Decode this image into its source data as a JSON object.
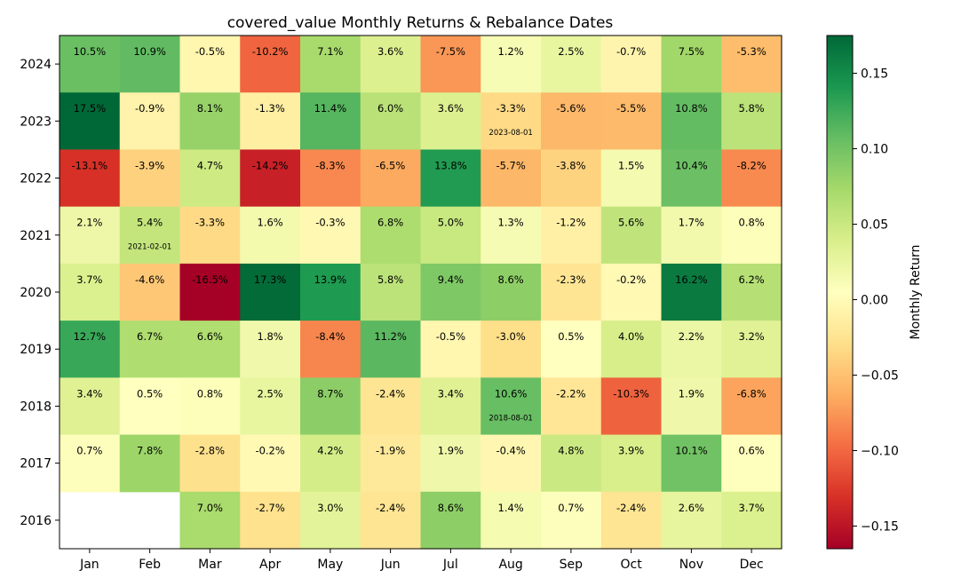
{
  "chart_data": {
    "type": "heatmap",
    "title": "covered_value Monthly Returns & Rebalance Dates",
    "xlabel": "",
    "ylabel": "",
    "months": [
      "Jan",
      "Feb",
      "Mar",
      "Apr",
      "May",
      "Jun",
      "Jul",
      "Aug",
      "Sep",
      "Oct",
      "Nov",
      "Dec"
    ],
    "years": [
      "2024",
      "2023",
      "2022",
      "2021",
      "2020",
      "2019",
      "2018",
      "2017",
      "2016"
    ],
    "values": [
      [
        0.105,
        0.109,
        -0.005,
        -0.102,
        0.071,
        0.036,
        -0.075,
        0.012,
        0.025,
        -0.007,
        0.075,
        -0.053
      ],
      [
        0.175,
        -0.009,
        0.081,
        -0.013,
        0.114,
        0.06,
        0.036,
        -0.033,
        -0.056,
        -0.055,
        0.108,
        0.058
      ],
      [
        -0.131,
        -0.039,
        0.047,
        -0.142,
        -0.083,
        -0.065,
        0.138,
        -0.057,
        -0.038,
        0.015,
        0.104,
        -0.082
      ],
      [
        0.021,
        0.054,
        -0.033,
        0.016,
        -0.003,
        0.068,
        0.05,
        0.013,
        -0.012,
        0.056,
        0.017,
        0.008
      ],
      [
        0.037,
        -0.046,
        -0.165,
        0.173,
        0.139,
        0.058,
        0.094,
        0.086,
        -0.023,
        -0.002,
        0.162,
        0.062
      ],
      [
        0.127,
        0.067,
        0.066,
        0.018,
        -0.084,
        0.112,
        -0.005,
        -0.03,
        0.005,
        0.04,
        0.022,
        0.032
      ],
      [
        0.034,
        0.005,
        0.008,
        0.025,
        0.087,
        -0.024,
        0.034,
        0.106,
        -0.022,
        -0.103,
        0.019,
        -0.068
      ],
      [
        0.007,
        0.078,
        -0.028,
        -0.002,
        0.042,
        -0.019,
        0.019,
        -0.004,
        0.048,
        0.039,
        0.101,
        0.006
      ],
      [
        null,
        null,
        0.07,
        -0.027,
        0.03,
        -0.024,
        0.086,
        0.014,
        0.007,
        -0.024,
        0.026,
        0.037
      ]
    ],
    "cell_labels": [
      [
        "10.5%",
        "10.9%",
        "-0.5%",
        "-10.2%",
        "7.1%",
        "3.6%",
        "-7.5%",
        "1.2%",
        "2.5%",
        "-0.7%",
        "7.5%",
        "-5.3%"
      ],
      [
        "17.5%",
        "-0.9%",
        "8.1%",
        "-1.3%",
        "11.4%",
        "6.0%",
        "3.6%",
        "-3.3%",
        "-5.6%",
        "-5.5%",
        "10.8%",
        "5.8%"
      ],
      [
        "-13.1%",
        "-3.9%",
        "4.7%",
        "-14.2%",
        "-8.3%",
        "-6.5%",
        "13.8%",
        "-5.7%",
        "-3.8%",
        "1.5%",
        "10.4%",
        "-8.2%"
      ],
      [
        "2.1%",
        "5.4%",
        "-3.3%",
        "1.6%",
        "-0.3%",
        "6.8%",
        "5.0%",
        "1.3%",
        "-1.2%",
        "5.6%",
        "1.7%",
        "0.8%"
      ],
      [
        "3.7%",
        "-4.6%",
        "-16.5%",
        "17.3%",
        "13.9%",
        "5.8%",
        "9.4%",
        "8.6%",
        "-2.3%",
        "-0.2%",
        "16.2%",
        "6.2%"
      ],
      [
        "12.7%",
        "6.7%",
        "6.6%",
        "1.8%",
        "-8.4%",
        "11.2%",
        "-0.5%",
        "-3.0%",
        "0.5%",
        "4.0%",
        "2.2%",
        "3.2%"
      ],
      [
        "3.4%",
        "0.5%",
        "0.8%",
        "2.5%",
        "8.7%",
        "-2.4%",
        "3.4%",
        "10.6%",
        "-2.2%",
        "-10.3%",
        "1.9%",
        "-6.8%"
      ],
      [
        "0.7%",
        "7.8%",
        "-2.8%",
        "-0.2%",
        "4.2%",
        "-1.9%",
        "1.9%",
        "-0.4%",
        "4.8%",
        "3.9%",
        "10.1%",
        "0.6%"
      ],
      [
        null,
        null,
        "7.0%",
        "-2.7%",
        "3.0%",
        "-2.4%",
        "8.6%",
        "1.4%",
        "0.7%",
        "-2.4%",
        "2.6%",
        "3.7%"
      ]
    ],
    "rebalance_dates": [
      {
        "year": "2023",
        "month": "Aug",
        "label": "2023-08-01"
      },
      {
        "year": "2021",
        "month": "Feb",
        "label": "2021-02-01"
      },
      {
        "year": "2018",
        "month": "Aug",
        "label": "2018-08-01"
      }
    ],
    "colorbar": {
      "label": "Monthly Return",
      "range": [
        -0.165,
        0.175
      ],
      "ticks": [
        0.15,
        0.1,
        0.05,
        0.0,
        -0.05,
        -0.1,
        -0.15
      ],
      "tick_labels": [
        "0.15",
        "0.10",
        "0.05",
        "0.00",
        "−0.05",
        "−0.10",
        "−0.15"
      ],
      "colormap": "RdYlGn"
    }
  }
}
